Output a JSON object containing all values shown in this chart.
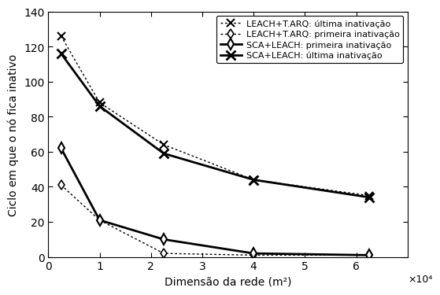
{
  "x_values": [
    2500,
    10000,
    22500,
    40000,
    62500
  ],
  "leach_tarq_ultima": [
    126,
    88,
    64,
    44,
    35
  ],
  "leach_tarq_primeira": [
    41,
    21,
    2,
    1,
    1
  ],
  "sca_leach_primeira": [
    62,
    21,
    10,
    2,
    1
  ],
  "sca_leach_ultima": [
    116,
    86,
    59,
    44,
    34
  ],
  "xlabel": "Dimensão da rede (m²)",
  "ylabel": "Ciclo em que o nó fica inativo",
  "xlim": [
    0,
    70000
  ],
  "ylim": [
    0,
    140
  ],
  "xticks": [
    0,
    10000,
    20000,
    30000,
    40000,
    50000,
    60000
  ],
  "xtick_labels": [
    "0",
    "1",
    "2",
    "3",
    "4",
    "5",
    "6"
  ],
  "yticks": [
    0,
    20,
    40,
    60,
    80,
    100,
    120,
    140
  ],
  "legend_leach_tarq_ultima": "LEACH+T.ARQ: última inativação",
  "legend_leach_tarq_primeira": "LEACH+T.ARQ: primeira inativação",
  "legend_sca_leach_primeira": "SCA+LEACH: primeira inativação",
  "legend_sca_leach_ultima": "SCA+LEACH: última inativação",
  "scale_label": "×10⁴",
  "bg_color": "#ffffff"
}
